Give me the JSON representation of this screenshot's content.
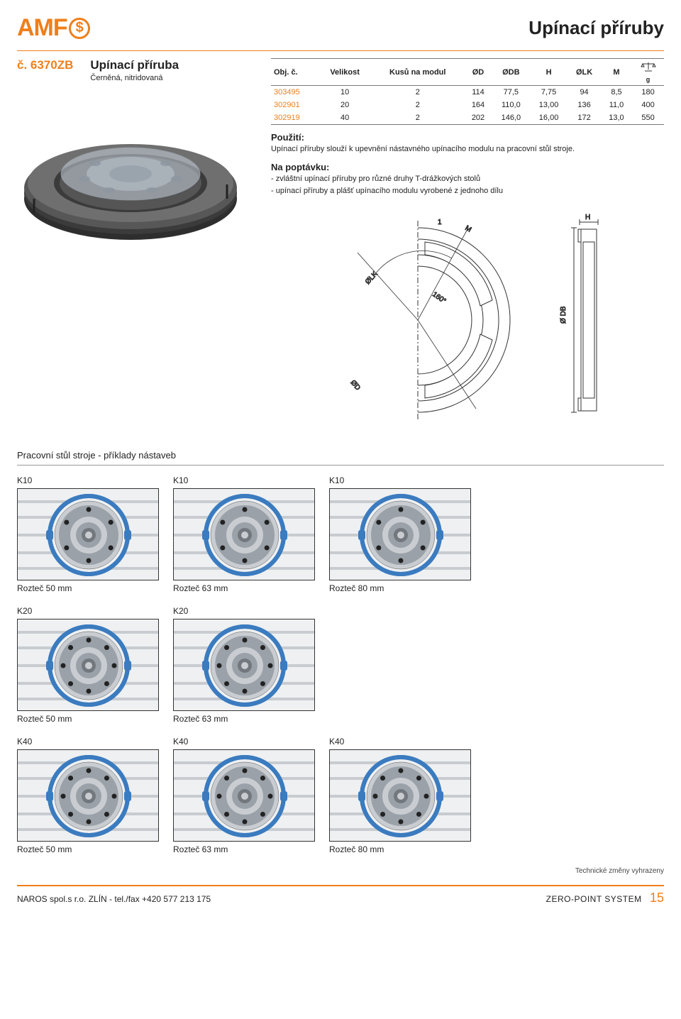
{
  "header": {
    "logo_text": "AMF",
    "logo_symbol": "$",
    "page_title": "Upínací příruby"
  },
  "product": {
    "part_number": "č. 6370ZB",
    "name": "Upínací příruba",
    "subtitle": "Černěná, nitridovaná"
  },
  "table": {
    "columns": [
      "Obj. č.",
      "Velikost",
      "Kusů na modul",
      "ØD",
      "ØDB",
      "H",
      "ØLK",
      "M",
      "g"
    ],
    "scale_icon_col": 8,
    "rows": [
      {
        "order": "303495",
        "cells": [
          "10",
          "2",
          "114",
          "77,5",
          "7,75",
          "94",
          "8,5",
          "180"
        ]
      },
      {
        "order": "302901",
        "cells": [
          "20",
          "2",
          "164",
          "110,0",
          "13,00",
          "136",
          "11,0",
          "400"
        ]
      },
      {
        "order": "302919",
        "cells": [
          "40",
          "2",
          "202",
          "146,0",
          "16,00",
          "172",
          "13,0",
          "550"
        ]
      }
    ]
  },
  "usage": {
    "heading": "Použití:",
    "text": "Upínací příruby slouží k upevnění nástavného upínacího modulu na pracovní stůl stroje."
  },
  "on_request": {
    "heading": "Na poptávku:",
    "items": [
      "- zvláštní upínací příruby pro různé druhy T-drážkových stolů",
      "- upínací příruby a plášť upínacího modulu vyrobené z jednoho dílu"
    ]
  },
  "drawing": {
    "labels": {
      "one": "1",
      "M": "M",
      "H": "H",
      "OLK": "ØLK",
      "ODB": "Ø DB",
      "OD": "ØD",
      "angle": "160°"
    },
    "colors": {
      "line": "#333333",
      "hatch": "#888888",
      "bg": "#ffffff"
    }
  },
  "examples": {
    "heading": "Pracovní stůl stroje - příklady nástaveb",
    "rows": [
      {
        "top_labels": [
          "K10",
          "K10",
          "K10"
        ],
        "bot_labels": [
          "Rozteč 50 mm",
          "Rozteč 63 mm",
          "Rozteč 80 mm"
        ],
        "bolt_count": 6
      },
      {
        "top_labels": [
          "K20",
          "K20"
        ],
        "bot_labels": [
          "Rozteč 50 mm",
          "Rozteč 63 mm"
        ],
        "bolt_count": 8
      },
      {
        "top_labels": [
          "K40",
          "K40",
          "K40"
        ],
        "bot_labels": [
          "Rozteč 50 mm",
          "Rozteč 63 mm",
          "Rozteč 80 mm"
        ],
        "bolt_count": 8
      }
    ],
    "colors": {
      "flange": "#3b7bbf",
      "flange_dark": "#2a5a90",
      "module_outer": "#c9cdd1",
      "module_mid": "#9aa1a8",
      "module_inner": "#72787e",
      "tslot": "#c8ccd0",
      "bg": "#eef0f2",
      "bolt": "#222222",
      "border": "#333333"
    }
  },
  "footer": {
    "note": "Technické změny vyhrazeny",
    "left": "NAROS spol.s r.o. ZLÍN - tel./fax +420 577 213 175",
    "right_label": "ZERO-POINT SYSTEM",
    "page_number": "15"
  }
}
